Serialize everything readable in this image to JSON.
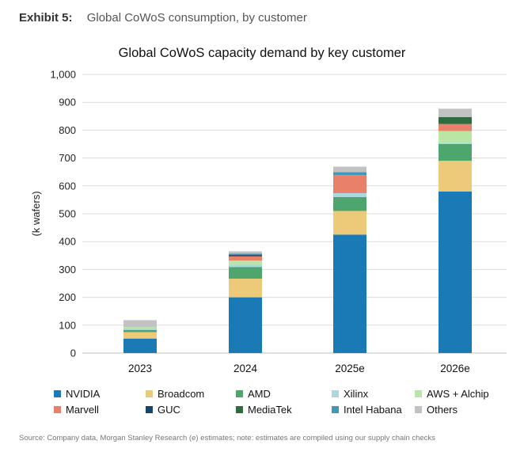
{
  "exhibit": {
    "number": "Exhibit 5:",
    "title": "Global CoWoS consumption, by customer"
  },
  "source": "Source: Company data, Morgan Stanley Research (e) estimates; note: estimates are compiled using our supply chain checks",
  "colors": {
    "NVIDIA": "#1a7ab5",
    "Broadcom": "#edc97a",
    "AMD": "#4fa56e",
    "Xilinx": "#a9d8df",
    "AWS + Alchip": "#b9e5a5",
    "Marvell": "#e8806a",
    "GUC": "#1b4566",
    "MediaTek": "#2f6b3e",
    "Intel Habana": "#4596b8",
    "Others": "#c2c2c2"
  },
  "chart_data": {
    "type": "bar",
    "stacked": true,
    "title": "Global CoWoS capacity demand by key customer",
    "xlabel": "",
    "ylabel": "(k wafers)",
    "ylim": [
      0,
      1000
    ],
    "yticks": [
      0,
      100,
      200,
      300,
      400,
      500,
      600,
      700,
      800,
      900,
      1000
    ],
    "ytick_labels": [
      "0",
      "100",
      "200",
      "300",
      "400",
      "500",
      "600",
      "700",
      "800",
      "900",
      "1,000"
    ],
    "categories": [
      "2023",
      "2024",
      "2025e",
      "2026e"
    ],
    "legend_position": "bottom",
    "series": [
      {
        "name": "NVIDIA",
        "values": [
          52,
          200,
          425,
          580
        ]
      },
      {
        "name": "Broadcom",
        "values": [
          23,
          67,
          85,
          110
        ]
      },
      {
        "name": "AMD",
        "values": [
          8,
          42,
          50,
          60
        ]
      },
      {
        "name": "Xilinx",
        "values": [
          5,
          8,
          14,
          5
        ]
      },
      {
        "name": "AWS + Alchip",
        "values": [
          5,
          15,
          0,
          42
        ]
      },
      {
        "name": "Marvell",
        "values": [
          0,
          15,
          65,
          25
        ]
      },
      {
        "name": "GUC",
        "values": [
          0,
          5,
          0,
          0
        ]
      },
      {
        "name": "MediaTek",
        "values": [
          0,
          0,
          0,
          25
        ]
      },
      {
        "name": "Intel Habana",
        "values": [
          0,
          5,
          10,
          0
        ]
      },
      {
        "name": "Others",
        "values": [
          25,
          8,
          20,
          30
        ]
      }
    ]
  }
}
